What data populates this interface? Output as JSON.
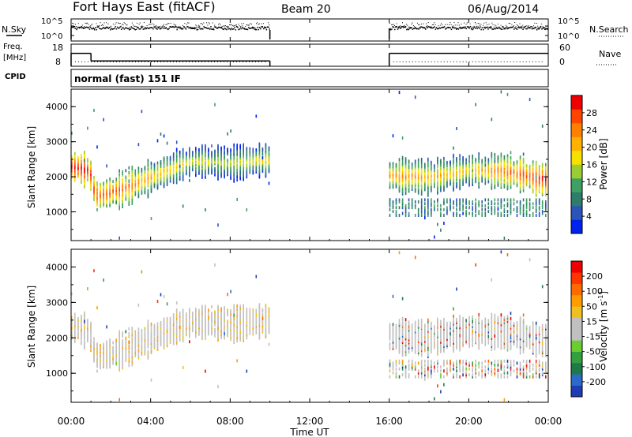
{
  "header": {
    "station": "Fort Hays East (fitACF)",
    "beam": "Beam 20",
    "date": "06/Aug/2014"
  },
  "noise_panel": {
    "left_label": "N.Sky",
    "right_label": "N.Search",
    "left_ticks": [
      "10^5",
      "10^0"
    ],
    "right_ticks": [
      "10^5",
      "10^0"
    ]
  },
  "freq_panel": {
    "left_label_1": "Freq.",
    "left_label_2": "[MHz]",
    "left_ticks": [
      "18",
      "8"
    ],
    "right_label": "Nave",
    "right_ticks": [
      "60",
      "0"
    ],
    "cpid_label": "CPID"
  },
  "cpid_text": "normal (fast) 151 IF",
  "power_colorbar": {
    "label": "Power [dB]",
    "ticks": [
      "28",
      "24",
      "20",
      "16",
      "12",
      "8",
      "4"
    ],
    "colors": [
      "#0022ee",
      "#2b53b8",
      "#2e7d6b",
      "#3fa063",
      "#9acd32",
      "#f5e000",
      "#ffb000",
      "#ff7f00",
      "#ff4500",
      "#ee0000"
    ]
  },
  "velocity_colorbar": {
    "label": "Velocity [m s^-1]",
    "label_main": "Velocity [m s",
    "label_sup": "-1",
    "label_end": "]",
    "ticks": [
      "200",
      "100",
      "50",
      "15",
      "-15",
      "-50",
      "-100",
      "-200"
    ],
    "colors": [
      "#1e3cb4",
      "#2b6ac9",
      "#1f7a4a",
      "#32a03c",
      "#6ccd32",
      "#c0c0c0",
      "#c0c0c0",
      "#f0c020",
      "#ff9d00",
      "#ff6a00",
      "#ff3500",
      "#ee0000"
    ]
  },
  "axes": {
    "ylabel": "Slant Range [km]",
    "yticks": [
      "4000",
      "3000",
      "2000",
      "1000"
    ],
    "xticks": [
      "00:00",
      "04:00",
      "08:00",
      "12:00",
      "16:00",
      "20:00",
      "00:00"
    ],
    "xlabel": "Time UT"
  },
  "chart_data": {
    "type": "heatmap",
    "title": "Fort Hays East (fitACF) Beam 20 06/Aug/2014",
    "xlabel": "Time UT",
    "ylabel": "Slant Range [km]",
    "xlim_hours": [
      0,
      24
    ],
    "ylim_km": [
      180,
      4500
    ],
    "data_gap_hours": [
      10,
      16
    ],
    "power": {
      "colorbar_label": "Power [dB]",
      "colorbar_range_dB": [
        0,
        32
      ],
      "main_echo_band": [
        {
          "t": 0.0,
          "range": 2300,
          "power": 26
        },
        {
          "t": 0.9,
          "range": 2200,
          "power": 24
        },
        {
          "t": 1.2,
          "range": 1450,
          "power": 22
        },
        {
          "t": 2.5,
          "range": 1650,
          "power": 20
        },
        {
          "t": 4.0,
          "range": 2000,
          "power": 16
        },
        {
          "t": 6.0,
          "range": 2450,
          "power": 12
        },
        {
          "t": 8.0,
          "range": 2400,
          "power": 10
        },
        {
          "t": 10.0,
          "range": 2500,
          "power": 14
        },
        {
          "t": 16.0,
          "range": 2050,
          "power": 18
        },
        {
          "t": 18.0,
          "range": 2000,
          "power": 16
        },
        {
          "t": 20.0,
          "range": 2200,
          "power": 14
        },
        {
          "t": 22.0,
          "range": 2150,
          "power": 20
        },
        {
          "t": 24.0,
          "range": 1900,
          "power": 24
        }
      ],
      "secondary_band_16_24h": {
        "range_low": 900,
        "range_high": 1350,
        "power": 8
      }
    },
    "velocity": {
      "colorbar_label": "Velocity [m s^-1]",
      "colorbar_range_ms": [
        -200,
        200
      ],
      "dominant_velocity": "-15 to 15",
      "notes_visible": "ground scatter near zero velocity along main band"
    },
    "noise_series": {
      "sky_level": "10^3",
      "search_level": "10^2"
    },
    "frequency_series": {
      "freq_MHz": [
        {
          "t_start": 0,
          "t_end": 1,
          "value": 14
        },
        {
          "t_start": 1,
          "t_end": 10,
          "value": 10
        },
        {
          "t_start": 16,
          "t_end": 24,
          "value": 14
        }
      ],
      "nave": [
        {
          "t_start": 0,
          "t_end": 10,
          "value": 12
        },
        {
          "t_start": 16,
          "t_end": 24,
          "value": 12
        }
      ]
    }
  }
}
